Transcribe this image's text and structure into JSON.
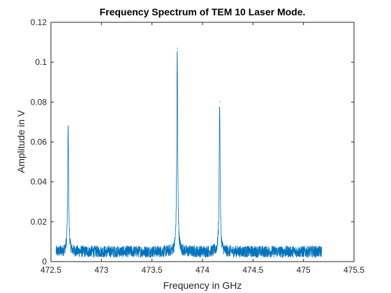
{
  "chart_data": {
    "type": "line",
    "title": "Frequency Spectrum of TEM 10 Laser Mode.",
    "xlabel": "Frequency in GHz",
    "ylabel": "Amplitude in V",
    "xlim": [
      472.5,
      475.5
    ],
    "ylim": [
      0,
      0.12
    ],
    "xticks": [
      "472.5",
      "473",
      "473.5",
      "474",
      "474.5",
      "475",
      "475.5"
    ],
    "yticks": [
      "0",
      "0.02",
      "0.04",
      "0.06",
      "0.08",
      "0.1",
      "0.12"
    ],
    "grid": false,
    "series": [
      {
        "color": "#0072bd",
        "x_range": [
          472.55,
          475.18
        ],
        "baseline": 0.005,
        "noise_amplitude": 0.003,
        "peaks": [
          {
            "x": 472.67,
            "y": 0.068
          },
          {
            "x": 473.75,
            "y": 0.107
          },
          {
            "x": 474.17,
            "y": 0.08
          }
        ]
      }
    ]
  }
}
